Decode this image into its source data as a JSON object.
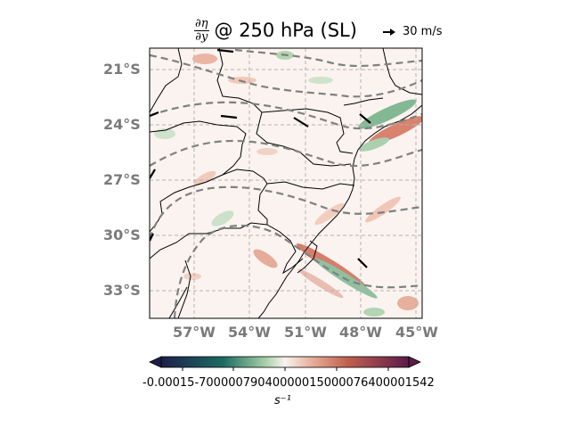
{
  "title": {
    "numerator": "∂η",
    "denominator": "∂y",
    "text": "@ 250 hPa (SL)"
  },
  "reference_vector": {
    "label": "30 m/s"
  },
  "map": {
    "lat_labels": [
      "21°S",
      "24°S",
      "27°S",
      "30°S",
      "33°S"
    ],
    "lon_labels": [
      "57°W",
      "54°W",
      "51°W",
      "48°W",
      "45°W"
    ],
    "extent": {
      "lon_min": -59.5,
      "lon_max": -44.7,
      "lat_min": -34.5,
      "lat_max": -19.8
    },
    "gridlines": true,
    "colormap": "diverging green–white–red (curl)"
  },
  "colorbar": {
    "tick_labels": [
      "-0.00015",
      "-0.00007",
      "0.00000",
      "0.00007",
      "0.00015"
    ],
    "tick_text_overlap": "-0.00015-70000079040000015000076400001542",
    "unit": "s⁻¹",
    "colors": [
      "#1d1f4a",
      "#1b6b63",
      "#f7f3ef",
      "#c2604f",
      "#5c1a4a"
    ]
  }
}
